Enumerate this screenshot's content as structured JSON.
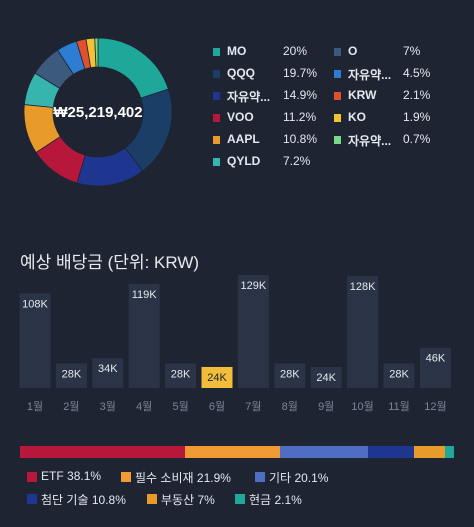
{
  "portfolio": {
    "total": "₩25,219,402",
    "holdings": [
      {
        "label": "MO",
        "pct": "20%",
        "value": 20.0,
        "color": "#1ea89a"
      },
      {
        "label": "QQQ",
        "pct": "19.7%",
        "value": 19.7,
        "color": "#1a3e66"
      },
      {
        "label": "자유약...",
        "pct": "14.9%",
        "value": 14.9,
        "color": "#1f3690"
      },
      {
        "label": "VOO",
        "pct": "11.2%",
        "value": 11.2,
        "color": "#b8173c"
      },
      {
        "label": "AAPL",
        "pct": "10.8%",
        "value": 10.8,
        "color": "#e89a2a"
      },
      {
        "label": "QYLD",
        "pct": "7.2%",
        "value": 7.2,
        "color": "#36b5ae"
      },
      {
        "label": "O",
        "pct": "7%",
        "value": 7.0,
        "color": "#3b5a7e"
      },
      {
        "label": "자유약...",
        "pct": "4.5%",
        "value": 4.5,
        "color": "#2d7dd2"
      },
      {
        "label": "KRW",
        "pct": "2.1%",
        "value": 2.1,
        "color": "#e0502e"
      },
      {
        "label": "KO",
        "pct": "1.9%",
        "value": 1.9,
        "color": "#f2c230"
      },
      {
        "label": "자유약...",
        "pct": "0.7%",
        "value": 0.7,
        "color": "#79d88a"
      }
    ]
  },
  "dividends": {
    "title": "예상 배당금 (단위: KRW)"
  },
  "chart_data": {
    "type": "bar",
    "categories": [
      "1월",
      "2월",
      "3월",
      "4월",
      "5월",
      "6월",
      "7월",
      "8월",
      "9월",
      "10월",
      "11월",
      "12월"
    ],
    "values": [
      108,
      28,
      34,
      119,
      28,
      24,
      129,
      28,
      24,
      128,
      28,
      46
    ],
    "value_labels": [
      "108K",
      "28K",
      "34K",
      "119K",
      "28K",
      "24K",
      "129K",
      "28K",
      "24K",
      "128K",
      "28K",
      "46K"
    ],
    "highlight_index": 5,
    "bar_color": "#2b3446",
    "highlight_color": "#f2bd3a"
  },
  "allocation": [
    {
      "label": "ETF",
      "pct": "38.1%",
      "value": 38.1,
      "color": "#b8173c"
    },
    {
      "label": "필수 소비재",
      "pct": "21.9%",
      "value": 21.9,
      "color": "#f09a36"
    },
    {
      "label": "기타",
      "pct": "20.1%",
      "value": 20.1,
      "color": "#4f6dc3"
    },
    {
      "label": "첨단 기술",
      "pct": "10.8%",
      "value": 10.8,
      "color": "#1f3690"
    },
    {
      "label": "부동산",
      "pct": "7%",
      "value": 7.0,
      "color": "#e89a2a"
    },
    {
      "label": "현금",
      "pct": "2.1%",
      "value": 2.1,
      "color": "#1ea89a"
    }
  ]
}
